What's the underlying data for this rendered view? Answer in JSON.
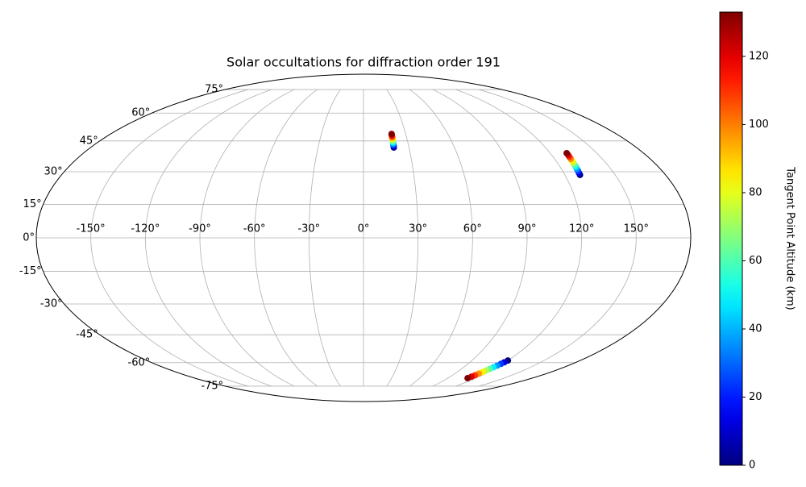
{
  "chart_data": {
    "type": "scatter",
    "projection": "mollweide",
    "title": "Solar occultations for diffraction order 191",
    "xticks": [
      {
        "value": -150,
        "label": "-150°"
      },
      {
        "value": -120,
        "label": "-120°"
      },
      {
        "value": -90,
        "label": "-90°"
      },
      {
        "value": -60,
        "label": "-60°"
      },
      {
        "value": -30,
        "label": "-30°"
      },
      {
        "value": 0,
        "label": "0°"
      },
      {
        "value": 30,
        "label": "30°"
      },
      {
        "value": 60,
        "label": "60°"
      },
      {
        "value": 90,
        "label": "90°"
      },
      {
        "value": 120,
        "label": "120°"
      },
      {
        "value": 150,
        "label": "150°"
      }
    ],
    "yticks": [
      {
        "value": -75,
        "label": "-75°"
      },
      {
        "value": -60,
        "label": "-60°"
      },
      {
        "value": -45,
        "label": "-45°"
      },
      {
        "value": -30,
        "label": "-30°"
      },
      {
        "value": -15,
        "label": "-15°"
      },
      {
        "value": 0,
        "label": "0°"
      },
      {
        "value": 15,
        "label": "15°"
      },
      {
        "value": 30,
        "label": "30°"
      },
      {
        "value": 45,
        "label": "45°"
      },
      {
        "value": 60,
        "label": "60°"
      },
      {
        "value": 75,
        "label": "75°"
      }
    ],
    "grid": true,
    "x": [
      20,
      20,
      20,
      20,
      20,
      20,
      20,
      20,
      20,
      20,
      20,
      20,
      129.0,
      129.1,
      129.3,
      129.4,
      129.6,
      129.7,
      129.9,
      130.0,
      130.2,
      130.3,
      130.5,
      130.6,
      120.0,
      119.2,
      118.4,
      117.6,
      116.8,
      116.0,
      115.2,
      114.4,
      113.6,
      112.8,
      112.0,
      111.2
    ],
    "y": [
      41.7,
      42.3,
      42.9,
      43.6,
      44.2,
      44.8,
      45.5,
      46.1,
      46.7,
      47.3,
      48.0,
      48.6,
      28.5,
      29.4,
      30.4,
      31.3,
      32.3,
      33.2,
      34.2,
      35.1,
      36.1,
      37.0,
      37.9,
      38.9,
      -58.8,
      -59.8,
      -60.7,
      -61.7,
      -62.7,
      -63.7,
      -64.6,
      -65.6,
      -66.6,
      -67.6,
      -68.5,
      -69.5
    ],
    "c": [
      0,
      12,
      24,
      36,
      48,
      61,
      73,
      85,
      97,
      109,
      121,
      133,
      0,
      12,
      24,
      36,
      48,
      61,
      73,
      85,
      97,
      109,
      121,
      133,
      0,
      12,
      24,
      36,
      48,
      61,
      73,
      85,
      97,
      109,
      121,
      133
    ],
    "colormap": "jet",
    "colorbar": {
      "label": "Tangent Point Altitude (km)",
      "clim": [
        0,
        133
      ],
      "ticks": [
        0,
        20,
        40,
        60,
        80,
        100,
        120
      ]
    }
  }
}
